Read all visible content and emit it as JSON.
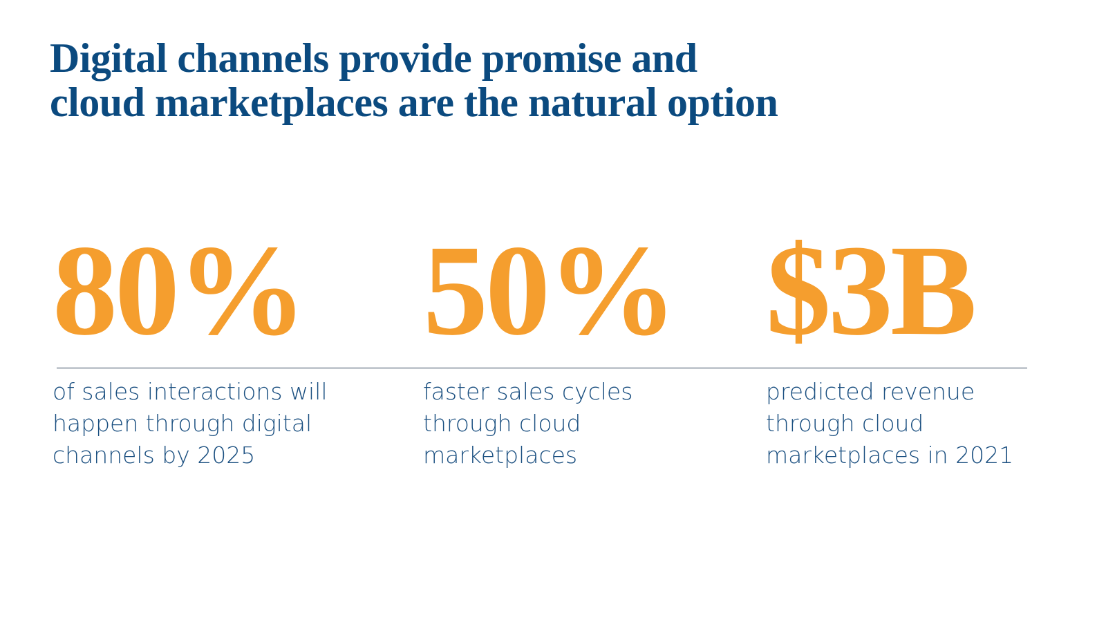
{
  "title": [
    "Digital channels provide promise and",
    "cloud marketplaces are the natural option"
  ],
  "stats": [
    {
      "value": "80%",
      "description": [
        "of sales interactions will",
        "happen through digital",
        "channels by 2025"
      ]
    },
    {
      "value": "50%",
      "description": [
        "faster sales cycles",
        "through cloud",
        "marketplaces"
      ]
    },
    {
      "value": "$3B",
      "description": [
        "predicted revenue",
        "through cloud",
        "marketplaces in 2021"
      ]
    }
  ]
}
